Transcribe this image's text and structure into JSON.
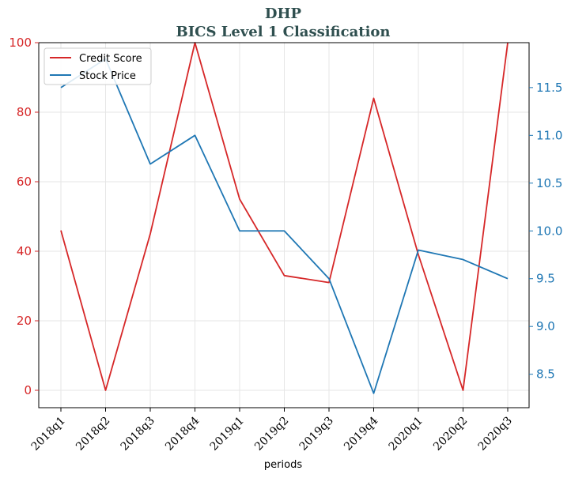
{
  "chart_data": {
    "type": "line",
    "title": "DHP",
    "subtitle": "BICS Level 1 Classification",
    "xlabel": "periods",
    "categories": [
      "2018q1",
      "2018q2",
      "2018q3",
      "2018q4",
      "2019q1",
      "2019q2",
      "2019q3",
      "2019q4",
      "2020q1",
      "2020q2",
      "2020q3"
    ],
    "series": [
      {
        "name": "Credit Score",
        "axis": "left",
        "color": "#d62728",
        "values": [
          46,
          0,
          45,
          100,
          55,
          33,
          31,
          84,
          39,
          0,
          100
        ]
      },
      {
        "name": "Stock Price",
        "axis": "right",
        "color": "#1f77b4",
        "values": [
          11.5,
          11.8,
          10.7,
          11.0,
          10.0,
          10.0,
          9.5,
          8.3,
          9.8,
          9.7,
          9.5
        ]
      }
    ],
    "ylim_left": [
      -5,
      100
    ],
    "yticks_left": [
      0,
      20,
      40,
      60,
      80,
      100
    ],
    "ylim_right": [
      8.15,
      11.97
    ],
    "yticks_right": [
      8.5,
      9.0,
      9.5,
      10.0,
      10.5,
      11.0,
      11.5
    ],
    "left_axis_color": "#d62728",
    "right_axis_color": "#1f77b4",
    "grid": true,
    "legend_position": "top-left"
  }
}
